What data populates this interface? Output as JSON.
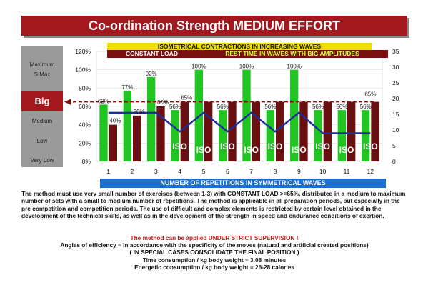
{
  "header": {
    "title": "Co-ordination Strength MEDIUM EFFORT"
  },
  "sidebar": {
    "levels": [
      "Maximum",
      "S.Max",
      "Big",
      "Medium",
      "Low",
      "Very Low"
    ]
  },
  "banners": {
    "top": "ISOMETRICAL CONTRACTIONS IN INCREASING WAVES",
    "load": "CONSTANT LOAD",
    "rest": "REST TIME IN WAVES WITH BIG AMPLITUDES",
    "bottom": "NUMBER OF REPETITIONS IN SYMMETRICAL WAVES"
  },
  "chart_data": {
    "type": "bar",
    "categories": [
      "1",
      "2",
      "3",
      "4",
      "5",
      "6",
      "7",
      "8",
      "9",
      "10",
      "11",
      "12"
    ],
    "series": [
      {
        "color": "#22c422",
        "values": [
          62,
          77,
          92,
          56,
          100,
          56,
          100,
          56,
          100,
          56,
          56,
          56
        ]
      },
      {
        "color": "#6b1010",
        "values": [
          40,
          50,
          60,
          65,
          65,
          65,
          65,
          65,
          65,
          65,
          65,
          65
        ]
      },
      {
        "color": "#1c2e9c",
        "values": [
          15.5,
          15.5,
          15.5,
          9.5,
          15.5,
          9.5,
          15.5,
          9.5,
          15.5,
          9,
          9,
          9
        ]
      }
    ],
    "bar_labels": [
      "62%",
      "77%",
      "92%",
      "56%",
      "100%",
      "56%",
      "100%",
      "56%",
      "100%",
      "56%",
      "56%",
      "56%"
    ],
    "load_labels": [
      "40%",
      "50%",
      "60%",
      "65%"
    ],
    "iso_labels": [
      "ISO",
      "ISO",
      "ISO",
      "ISO",
      "ISO",
      "ISO",
      "ISO",
      "ISO",
      "ISO"
    ],
    "reference_line_value": 65,
    "reference_label": "65%",
    "y_left": {
      "range": [
        0,
        120
      ],
      "ticks": [
        "0%",
        "20%",
        "40%",
        "60%",
        "80%",
        "100%",
        "120%"
      ]
    },
    "y_right": {
      "range": [
        0,
        35
      ],
      "ticks": [
        "0",
        "5",
        "10",
        "15",
        "20",
        "25",
        "30",
        "35"
      ]
    }
  },
  "text": {
    "paragraph": "The method must use very small number of exercises (between 1-3) with CONSTANT LOAD >=65%, distributed in a medium to maximum number of sets with a small to medium number of repetitions. The method is applicable in all preparation periods, but especially in the pre competition and competition periods. The use of difficult and complex elements is restricted by certain level obtained in the development of the technical skills, as well as in the development of the strength in speed and endurance conditions of exertion.",
    "warning": "The method can be applied UNDER STRICT SUPERVISION !",
    "angles": "Angles of efficiency = in accordance with the specificity of the moves  (natural and artificial created positions)",
    "special": "( IN SPECIAL CASES CONSOLIDATE THE FINAL POSITION )",
    "time": "Time consumption /  kg body weight =  3.08   minutes",
    "energy": "Energetic consumption /  kg body weight =  26-28  calories"
  }
}
